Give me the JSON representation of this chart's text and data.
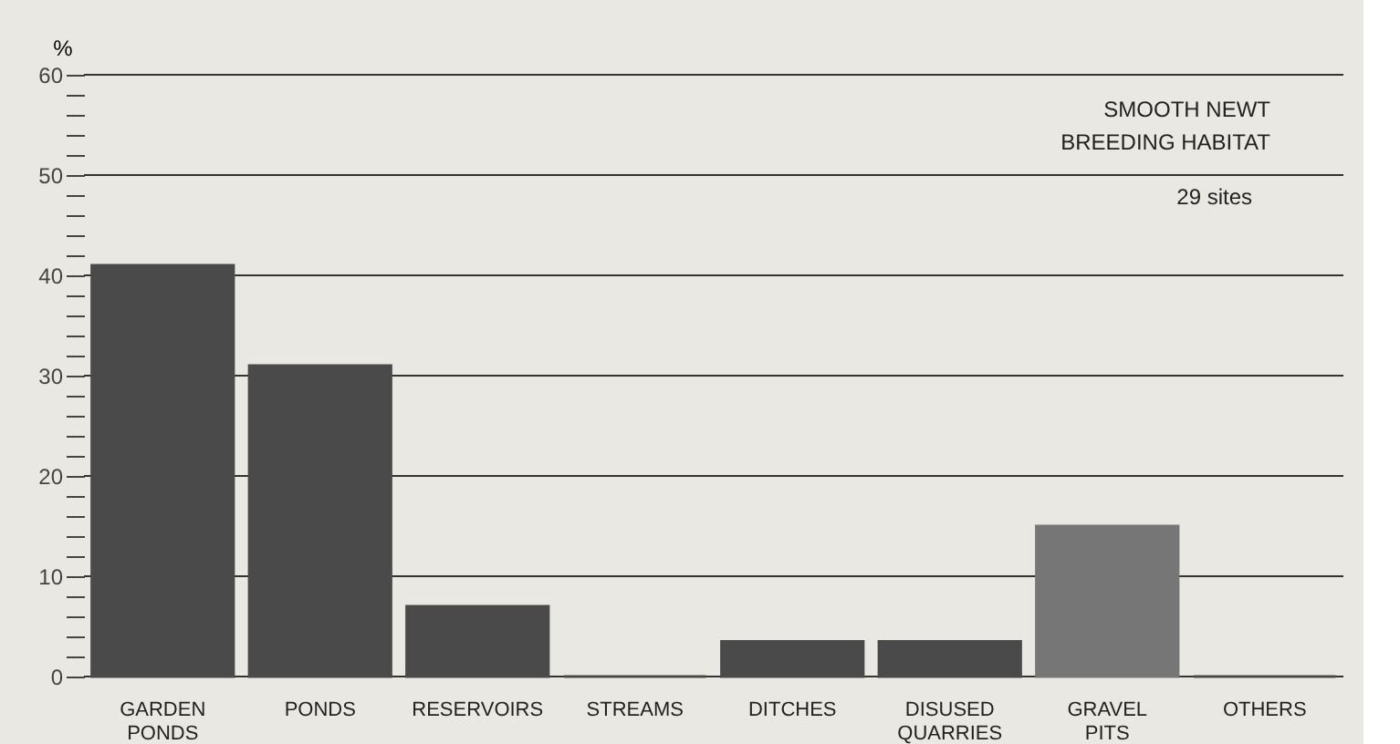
{
  "chart_data": {
    "type": "bar",
    "title": "SMOOTH NEWT BREEDING HABITAT",
    "subtitle": "29 sites",
    "ylabel": "%",
    "categories": [
      "GARDEN PONDS",
      "PONDS",
      "RESERVOIRS",
      "STREAMS",
      "DITCHES",
      "DISUSED QUARRIES",
      "GRAVEL PITS",
      "OTHERS"
    ],
    "values": [
      41,
      31,
      7,
      0,
      3.5,
      3.5,
      15,
      0
    ],
    "colors": [
      "#4a4a4a",
      "#4a4a4a",
      "#4a4a4a",
      "#4a4a4a",
      "#4a4a4a",
      "#4a4a4a",
      "#767676",
      "#4a4a4a"
    ],
    "ylim": [
      0,
      60
    ],
    "yticks": [
      0,
      {
        "value": 2,
        "label": null
      },
      {
        "value": 4,
        "label": null
      },
      {
        "value": 6,
        "label": null
      },
      {
        "value": 8,
        "label": null
      },
      10,
      {
        "value": 12,
        "label": null
      },
      {
        "value": 14,
        "label": null
      },
      {
        "value": 16,
        "label": null
      },
      {
        "value": 18,
        "label": null
      },
      20,
      {
        "value": 22,
        "label": null
      },
      {
        "value": 24,
        "label": null
      },
      {
        "value": 26,
        "label": null
      },
      {
        "value": 28,
        "label": null
      },
      30,
      {
        "value": 32,
        "label": null
      },
      {
        "value": 34,
        "label": null
      },
      {
        "value": 36,
        "label": null
      },
      {
        "value": 38,
        "label": null
      },
      40,
      {
        "value": 42,
        "label": null
      },
      {
        "value": 44,
        "label": null
      },
      {
        "value": 46,
        "label": null
      },
      {
        "value": 48,
        "label": null
      },
      50,
      {
        "value": 52,
        "label": null
      },
      {
        "value": 54,
        "label": null
      },
      {
        "value": 56,
        "label": null
      },
      {
        "value": 58,
        "label": null
      },
      60
    ],
    "grid": "y"
  }
}
